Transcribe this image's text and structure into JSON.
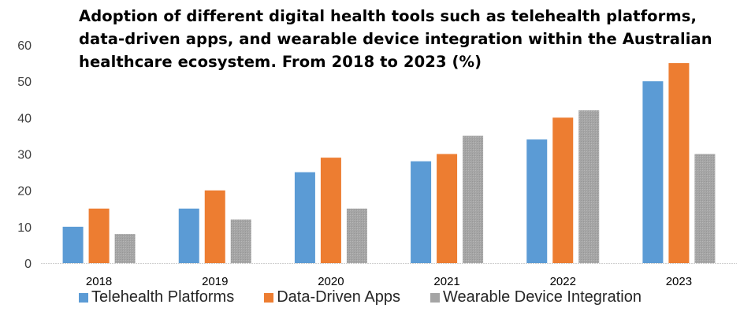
{
  "chart_data": {
    "type": "bar",
    "title": "Adoption of different digital health tools such as telehealth platforms, data-driven apps, and wearable device integration within the Australian healthcare ecosystem. From 2018 to 2023 (%)",
    "title_lines": [
      "Adoption of different digital health tools such as telehealth platforms,",
      "data-driven apps, and wearable device integration within the Australian",
      "healthcare ecosystem. From 2018 to 2023 (%)"
    ],
    "xlabel": "",
    "ylabel": "",
    "categories": [
      "2018",
      "2019",
      "2020",
      "2021",
      "2022",
      "2023"
    ],
    "series": [
      {
        "name": "Telehealth Platforms",
        "color": "#5b9bd5",
        "values": [
          10,
          15,
          25,
          28,
          34,
          50
        ]
      },
      {
        "name": "Data-Driven Apps",
        "color": "#ed7d31",
        "values": [
          15,
          20,
          29,
          30,
          40,
          55
        ]
      },
      {
        "name": "Wearable Device Integration",
        "color": "#a5a5a5",
        "values": [
          8,
          12,
          15,
          35,
          42,
          30
        ]
      }
    ],
    "ylim": [
      0,
      60
    ],
    "yticks": [
      0,
      10,
      20,
      30,
      40,
      50,
      60
    ],
    "grid": false,
    "legend_position": "bottom"
  }
}
